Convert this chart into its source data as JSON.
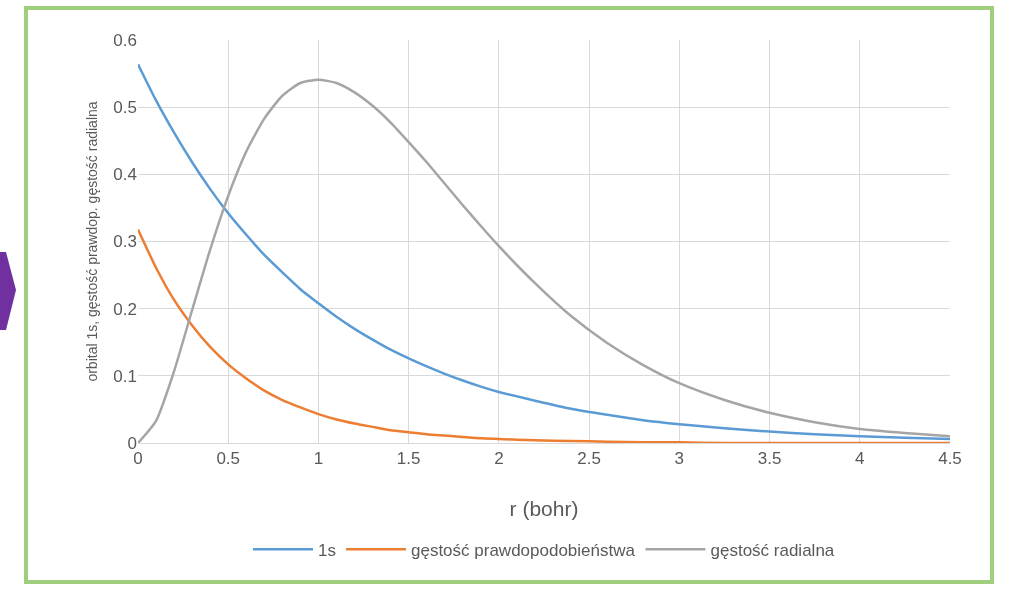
{
  "chart_data": {
    "type": "line",
    "xlabel": "r (bohr)",
    "ylabel": "orbital 1s, gęstość prawdop. gęstość radialna",
    "x": [
      0,
      0.1,
      0.2,
      0.3,
      0.4,
      0.5,
      0.6,
      0.7,
      0.8,
      0.9,
      1.0,
      1.1,
      1.2,
      1.3,
      1.4,
      1.5,
      1.6,
      1.7,
      1.8,
      1.9,
      2.0,
      2.2,
      2.4,
      2.6,
      2.8,
      3.0,
      3.25,
      3.5,
      3.75,
      4.0,
      4.25,
      4.5
    ],
    "series": [
      {
        "name": "1s",
        "color": "#5b9bd5",
        "values": [
          0.564,
          0.51,
          0.462,
          0.418,
          0.378,
          0.342,
          0.31,
          0.28,
          0.254,
          0.229,
          0.208,
          0.188,
          0.17,
          0.154,
          0.139,
          0.126,
          0.114,
          0.103,
          0.093,
          0.084,
          0.076,
          0.063,
          0.051,
          0.042,
          0.034,
          0.028,
          0.022,
          0.017,
          0.013,
          0.01,
          0.008,
          0.006
        ]
      },
      {
        "name": "gęstość prawdopodobieństwa",
        "color": "#ed7d31",
        "values": [
          0.318,
          0.261,
          0.213,
          0.175,
          0.143,
          0.117,
          0.096,
          0.078,
          0.064,
          0.053,
          0.043,
          0.035,
          0.029,
          0.024,
          0.019,
          0.016,
          0.013,
          0.011,
          0.009,
          0.007,
          0.006,
          0.004,
          0.003,
          0.002,
          0.001,
          0.001,
          0,
          0,
          0,
          0,
          0,
          0
        ]
      },
      {
        "name": "gęstość radialna",
        "color": "#a5a5a5",
        "values": [
          0,
          0.033,
          0.107,
          0.198,
          0.288,
          0.368,
          0.434,
          0.483,
          0.517,
          0.536,
          0.541,
          0.536,
          0.522,
          0.502,
          0.477,
          0.448,
          0.418,
          0.386,
          0.354,
          0.323,
          0.293,
          0.238,
          0.189,
          0.149,
          0.116,
          0.089,
          0.064,
          0.045,
          0.031,
          0.021,
          0.015,
          0.01
        ]
      }
    ],
    "xlim": [
      0,
      4.5
    ],
    "xticks": [
      0,
      0.5,
      1,
      1.5,
      2,
      2.5,
      3,
      3.5,
      4,
      4.5
    ],
    "ylim": [
      0,
      0.6
    ],
    "yticks": [
      0,
      0.1,
      0.2,
      0.3,
      0.4,
      0.5,
      0.6
    ],
    "grid": true,
    "legend": "bottom",
    "marker": "none",
    "line_style": "solid"
  }
}
